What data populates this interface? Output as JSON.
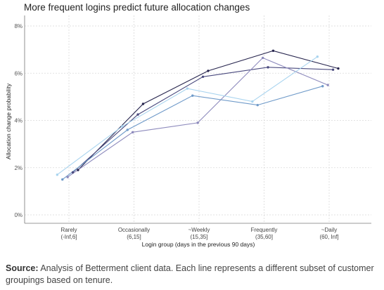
{
  "chart_data": {
    "type": "line",
    "title": "More frequent logins predict future allocation changes",
    "xlabel": "Login group (days in the previous 90 days)",
    "ylabel": "Allocation change probability",
    "categories": [
      {
        "name": "Rarely",
        "range": "(-Inf,6]"
      },
      {
        "name": "Occasionally",
        "range": "(6,15]"
      },
      {
        "name": "~Weekly",
        "range": "(15,35]"
      },
      {
        "name": "Frequently",
        "range": "(35,60]"
      },
      {
        "name": "~Daily",
        "range": "(60, Inf]"
      }
    ],
    "yticks": [
      "0%",
      "2%",
      "4%",
      "6%",
      "8%"
    ],
    "ylim": [
      0,
      8
    ],
    "grid": true,
    "legend": "none",
    "series": [
      {
        "color": "#27254e",
        "x": [
          1.14,
          2.14,
          3.14,
          4.14,
          5.14
        ],
        "y": [
          1.9,
          4.7,
          6.1,
          6.95,
          6.2
        ]
      },
      {
        "color": "#4a4a7e",
        "x": [
          1.06,
          2.06,
          3.06,
          4.06,
          5.06
        ],
        "y": [
          1.8,
          4.25,
          5.85,
          6.25,
          6.15
        ]
      },
      {
        "color": "#8e8bbd",
        "x": [
          0.98,
          1.98,
          2.98,
          3.98,
          4.98
        ],
        "y": [
          1.6,
          3.5,
          3.9,
          6.65,
          5.5
        ]
      },
      {
        "color": "#6f9ac9",
        "x": [
          0.9,
          1.9,
          2.9,
          3.9,
          4.9
        ],
        "y": [
          1.5,
          3.6,
          5.05,
          4.65,
          5.45
        ]
      },
      {
        "color": "#a9d4ef",
        "x": [
          0.82,
          1.82,
          2.82,
          3.82,
          4.82
        ],
        "y": [
          1.7,
          3.75,
          5.35,
          4.8,
          6.7
        ]
      }
    ]
  },
  "caption": {
    "label": "Source:",
    "text": "Analysis of Betterment client data. Each line represents a different subset of customer groupings based on tenure."
  }
}
